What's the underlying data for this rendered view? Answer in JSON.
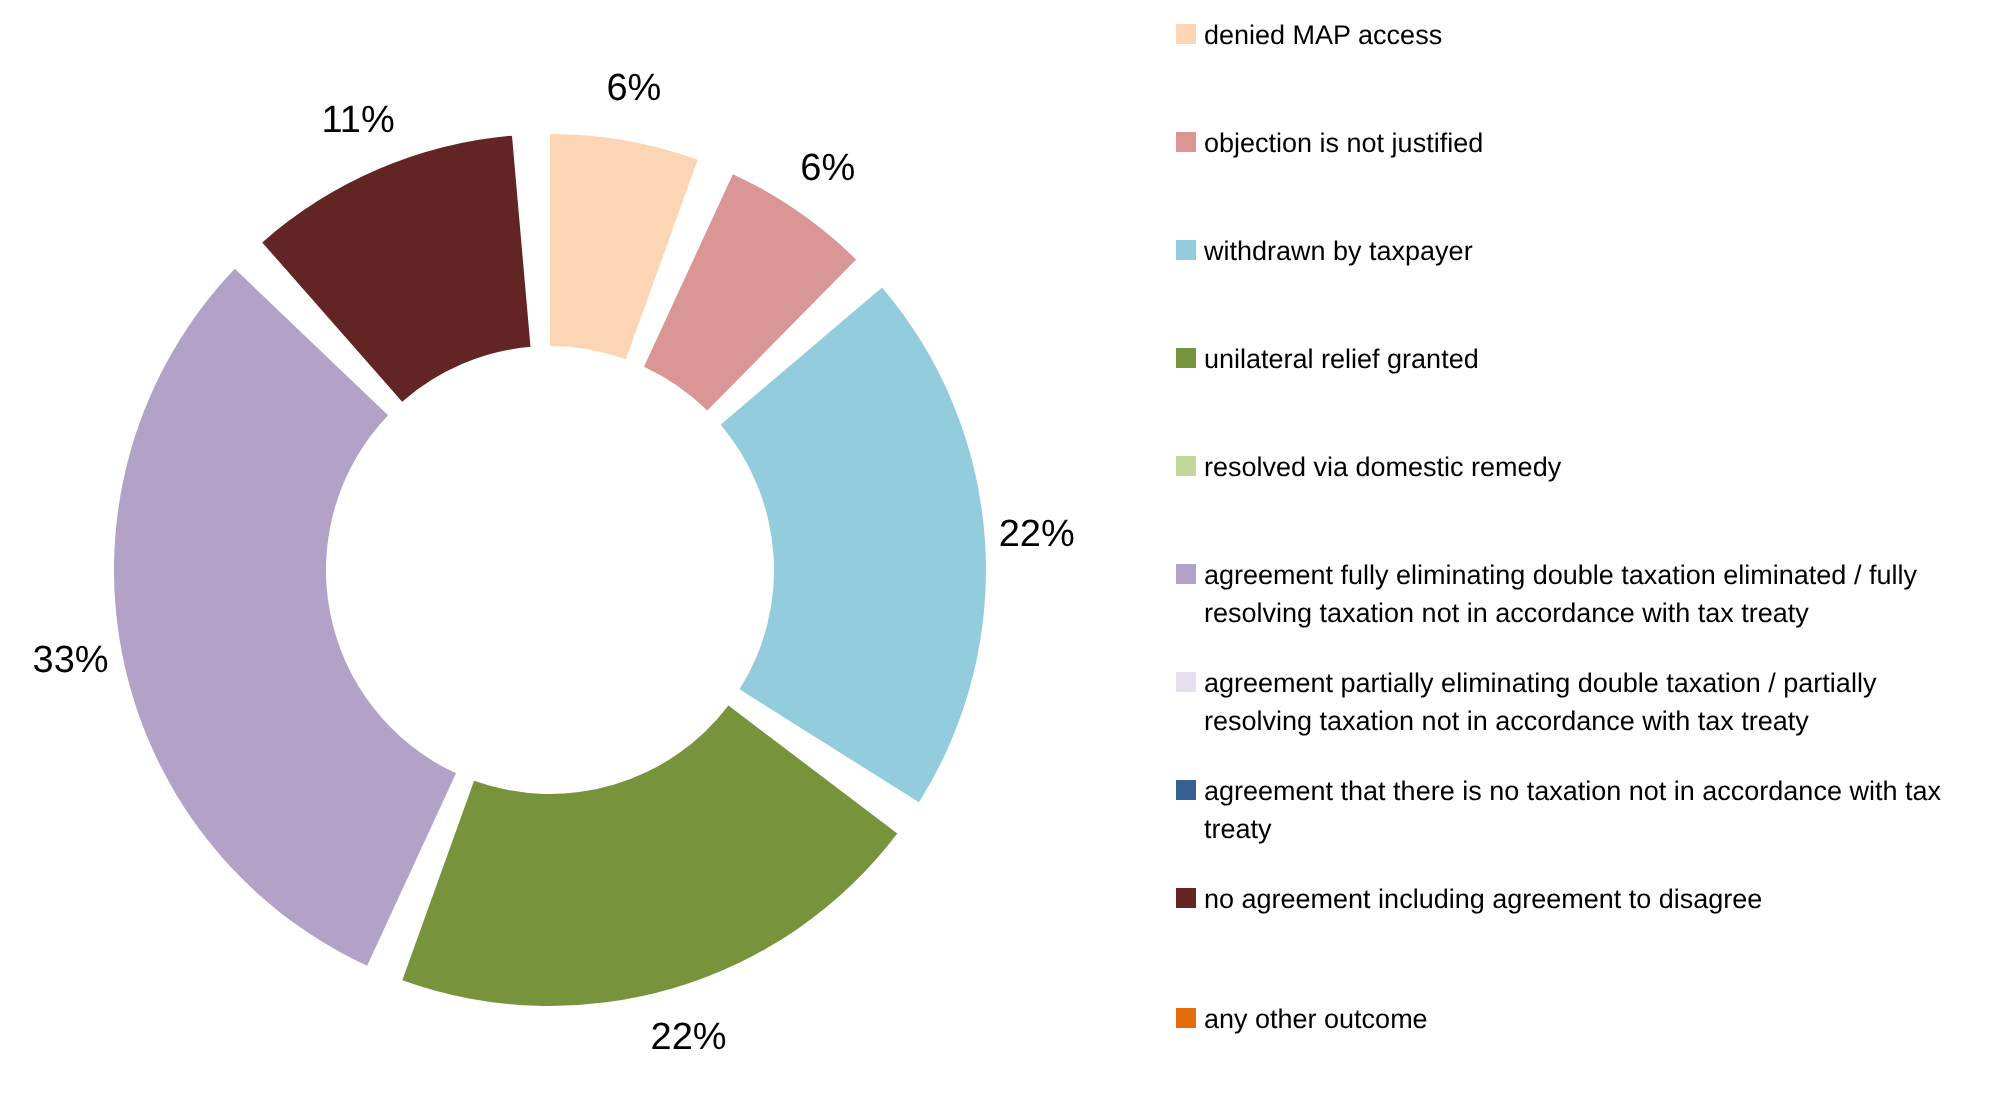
{
  "chart_data": {
    "type": "donut",
    "categories": [
      "denied MAP access",
      "objection is not justified",
      "withdrawn by taxpayer",
      "unilateral relief granted",
      "resolved via domestic remedy",
      "agreement fully eliminating double taxation eliminated / fully resolving taxation not in accordance with tax treaty",
      "agreement partially eliminating double taxation / partially resolving taxation not in accordance with tax treaty",
      "agreement that there is no taxation not in accordance with tax treaty",
      "no agreement including agreement to disagree",
      "any other outcome"
    ],
    "values": [
      6,
      6,
      22,
      22,
      0,
      33,
      0,
      0,
      11,
      0
    ],
    "colors": [
      "#fcd5b5",
      "#d99694",
      "#93cddd",
      "#77933c",
      "#c3d69b",
      "#b3a2c7",
      "#e6e0ec",
      "#376092",
      "#632523",
      "#e46c0a"
    ],
    "value_labels": [
      "6%",
      "6%",
      "22%",
      "22%",
      null,
      "33%",
      null,
      null,
      "11%",
      null
    ],
    "legend": "right"
  }
}
